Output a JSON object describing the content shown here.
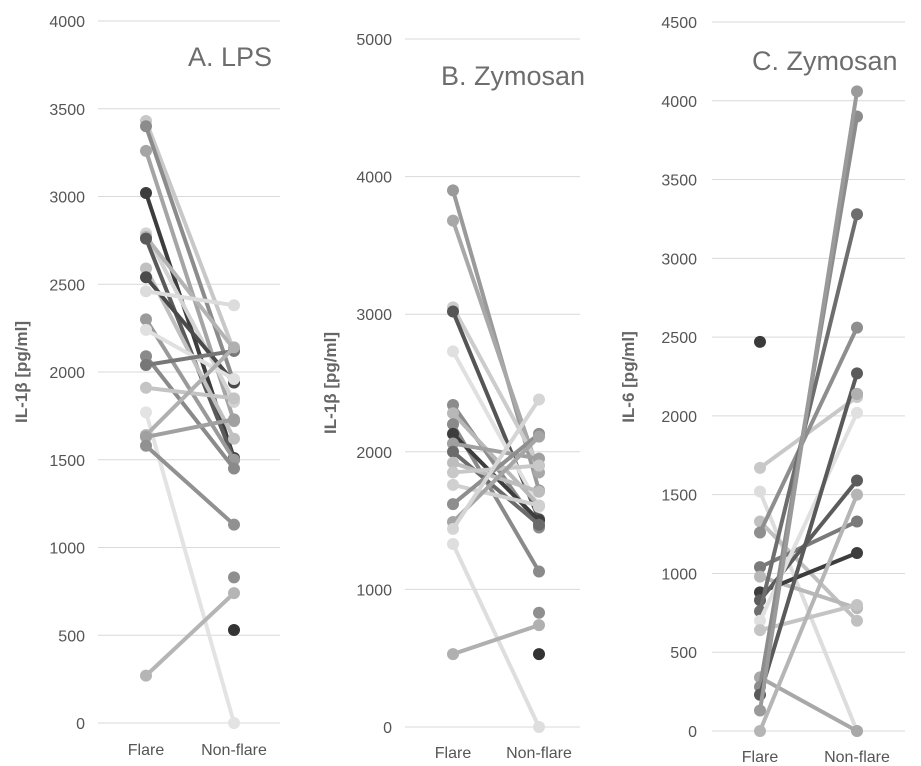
{
  "chart_data": [
    {
      "type": "line",
      "title": "A. LPS",
      "ylabel": "IL-1β [pg/ml]",
      "categories": [
        "Flare",
        "Non-flare"
      ],
      "ylim": [
        0,
        4000
      ],
      "yticks": [
        0,
        500,
        1000,
        1500,
        2000,
        2500,
        3000,
        3500,
        4000
      ],
      "grid": true,
      "series": [
        {
          "values": [
            3430,
            2120
          ],
          "color": "#c8c8c8"
        },
        {
          "values": [
            3400,
            1940
          ],
          "color": "#8c8c8c"
        },
        {
          "values": [
            3260,
            1720
          ],
          "color": "#a5a5a5"
        },
        {
          "values": [
            3020,
            1510
          ],
          "color": "#3d3d3d"
        },
        {
          "values": [
            2790,
            1830
          ],
          "color": "#d3d3d3"
        },
        {
          "values": [
            2770,
            2130
          ],
          "color": "#b4b4b4"
        },
        {
          "values": [
            2760,
            1500
          ],
          "color": "#5a5a5a"
        },
        {
          "values": [
            2590,
            1620
          ],
          "color": "#c0c0c0"
        },
        {
          "values": [
            2540,
            1940
          ],
          "color": "#4a4a4a"
        },
        {
          "values": [
            2460,
            2380
          ],
          "color": "#dcdcdc"
        },
        {
          "values": [
            2300,
            1500
          ],
          "color": "#9a9a9a"
        },
        {
          "values": [
            2240,
            1960
          ],
          "color": "#e0e0e0"
        },
        {
          "values": [
            2090,
            1450
          ],
          "color": "#8a8a8a"
        },
        {
          "values": [
            2040,
            2120
          ],
          "color": "#777777"
        },
        {
          "values": [
            1910,
            1850
          ],
          "color": "#c4c4c4"
        },
        {
          "values": [
            1770,
            0
          ],
          "color": "#e3e3e3"
        },
        {
          "values": [
            1640,
            2140
          ],
          "color": "#b0b0b0"
        },
        {
          "values": [
            1630,
            1730
          ],
          "color": "#a0a0a0"
        },
        {
          "values": [
            1580,
            1130
          ],
          "color": "#919191"
        },
        {
          "values": [
            270,
            740
          ],
          "color": "#b5b5b5"
        }
      ],
      "extra_points": [
        {
          "category": "Non-flare",
          "value": 830,
          "color": "#8f8f8f"
        },
        {
          "category": "Non-flare",
          "value": 530,
          "color": "#333333"
        }
      ]
    },
    {
      "type": "line",
      "title": "B. Zymosan",
      "ylabel": "IL-1β [pg/ml]",
      "categories": [
        "Flare",
        "Non-flare"
      ],
      "ylim": [
        0,
        5000
      ],
      "yticks": [
        0,
        1000,
        2000,
        3000,
        4000,
        5000
      ],
      "grid": true,
      "series": [
        {
          "values": [
            3900,
            1720
          ],
          "color": "#9a9a9a"
        },
        {
          "values": [
            3680,
            1850
          ],
          "color": "#a8a8a8"
        },
        {
          "values": [
            3050,
            1900
          ],
          "color": "#cccccc"
        },
        {
          "values": [
            3020,
            1510
          ],
          "color": "#555555"
        },
        {
          "values": [
            2730,
            1600
          ],
          "color": "#e0e0e0"
        },
        {
          "values": [
            2340,
            1450
          ],
          "color": "#8c8c8c"
        },
        {
          "values": [
            2280,
            1610
          ],
          "color": "#b8b8b8"
        },
        {
          "values": [
            2200,
            1130
          ],
          "color": "#8a8a8a"
        },
        {
          "values": [
            2130,
            1500
          ],
          "color": "#3d3d3d"
        },
        {
          "values": [
            2060,
            1950
          ],
          "color": "#a0a0a0"
        },
        {
          "values": [
            2000,
            1470
          ],
          "color": "#6b6b6b"
        },
        {
          "values": [
            1920,
            1710
          ],
          "color": "#bdbdbd"
        },
        {
          "values": [
            1850,
            1900
          ],
          "color": "#c8c8c8"
        },
        {
          "values": [
            1760,
            1610
          ],
          "color": "#d0d0d0"
        },
        {
          "values": [
            1620,
            2130
          ],
          "color": "#8e8e8e"
        },
        {
          "values": [
            1490,
            2110
          ],
          "color": "#a5a5a5"
        },
        {
          "values": [
            1440,
            2380
          ],
          "color": "#d5d5d5"
        },
        {
          "values": [
            1330,
            0
          ],
          "color": "#dedede"
        },
        {
          "values": [
            530,
            740
          ],
          "color": "#b0b0b0"
        }
      ],
      "extra_points": [
        {
          "category": "Non-flare",
          "value": 830,
          "color": "#8f8f8f"
        },
        {
          "category": "Non-flare",
          "value": 530,
          "color": "#333333"
        }
      ]
    },
    {
      "type": "line",
      "title": "C. Zymosan",
      "ylabel": "IL-6 [pg/ml]",
      "categories": [
        "Flare",
        "Non-flare"
      ],
      "ylim": [
        0,
        4500
      ],
      "yticks": [
        0,
        500,
        1000,
        1500,
        2000,
        2500,
        3000,
        3500,
        4000,
        4500
      ],
      "grid": true,
      "series": [
        {
          "values": [
            1670,
            2120
          ],
          "color": "#c8c8c8"
        },
        {
          "values": [
            1520,
            0
          ],
          "color": "#dddddd"
        },
        {
          "values": [
            1330,
            700
          ],
          "color": "#c0c0c0"
        },
        {
          "values": [
            1260,
            2560
          ],
          "color": "#8e8e8e"
        },
        {
          "values": [
            1040,
            1330
          ],
          "color": "#7a7a7a"
        },
        {
          "values": [
            980,
            780
          ],
          "color": "#b8b8b8"
        },
        {
          "values": [
            880,
            1130
          ],
          "color": "#3d3d3d"
        },
        {
          "values": [
            830,
            1590
          ],
          "color": "#5c5c5c"
        },
        {
          "values": [
            760,
            3280
          ],
          "color": "#6e6e6e"
        },
        {
          "values": [
            700,
            2020
          ],
          "color": "#e0e0e0"
        },
        {
          "values": [
            640,
            800
          ],
          "color": "#c4c4c4"
        },
        {
          "values": [
            340,
            0
          ],
          "color": "#a8a8a8"
        },
        {
          "values": [
            280,
            3900
          ],
          "color": "#8c8c8c"
        },
        {
          "values": [
            230,
            2270
          ],
          "color": "#5a5a5a"
        },
        {
          "values": [
            130,
            4060
          ],
          "color": "#9a9a9a"
        },
        {
          "values": [
            0,
            1500
          ],
          "color": "#b5b5b5"
        }
      ],
      "extra_points": [
        {
          "category": "Flare",
          "value": 2470,
          "color": "#3a3a3a"
        },
        {
          "category": "Non-flare",
          "value": 2140,
          "color": "#999999"
        },
        {
          "category": "Non-flare",
          "value": 2140,
          "color": "#b0b0b0"
        }
      ]
    }
  ]
}
